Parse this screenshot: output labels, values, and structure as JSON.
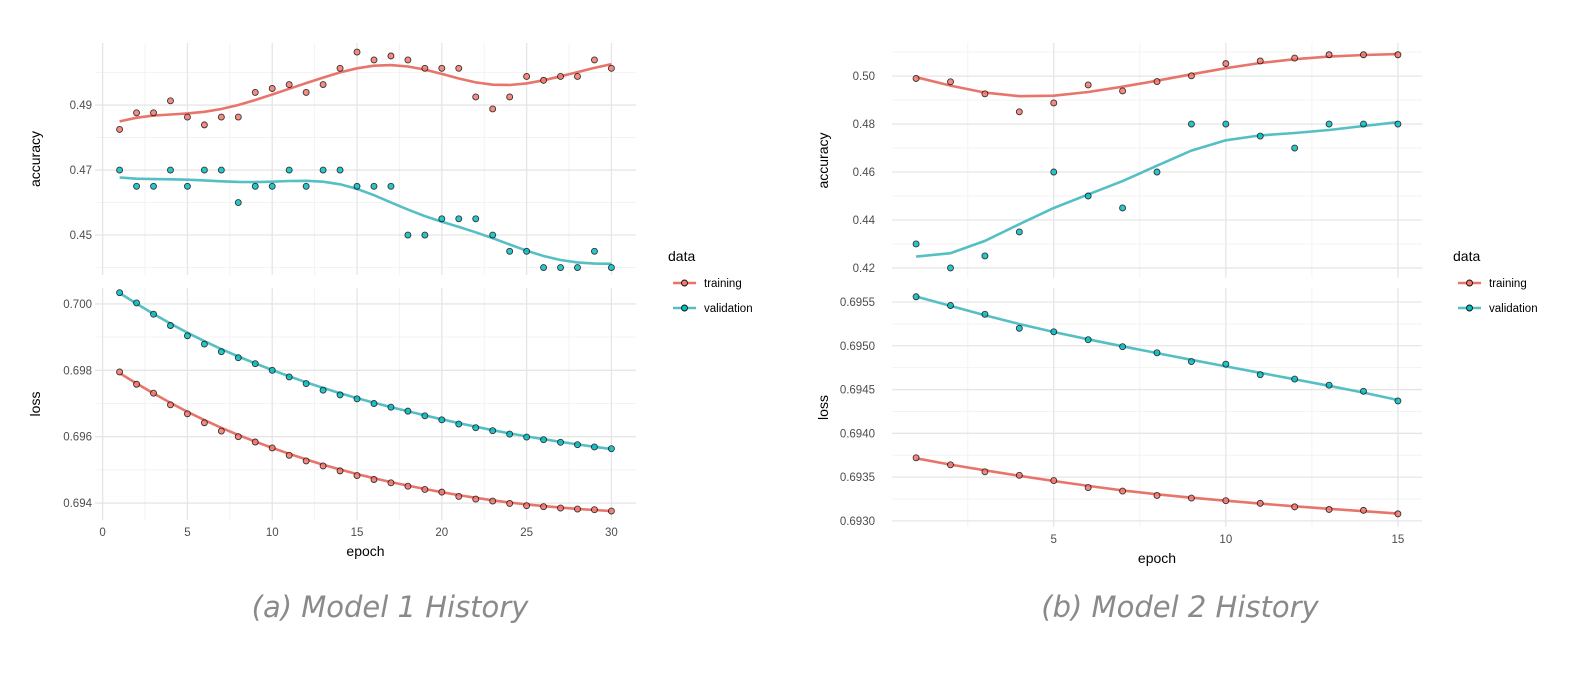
{
  "colors": {
    "training": "#F8766D",
    "validation": "#00BFC4",
    "training_line": "#E8756B",
    "validation_line": "#55BFC4"
  },
  "legend": {
    "title": "data",
    "entries": [
      "training",
      "validation"
    ],
    "placement": "right"
  },
  "captions": [
    "(a) Model 1 History",
    "(b) Model 2 History"
  ],
  "chart_data": [
    {
      "type": "scatter",
      "title": "",
      "xlabel": "epoch",
      "xlim": [
        -0.45,
        31.45
      ],
      "xticks": [
        0,
        5,
        10,
        15,
        20,
        25,
        30
      ],
      "grid": true,
      "smooth": "loess",
      "panels": [
        {
          "ylabel": "accuracy",
          "ylim": [
            0.4377,
            0.5091
          ],
          "yticks": [
            "0.45",
            "0.47",
            "0.49"
          ],
          "series": [
            {
              "name": "training",
              "values": [
                0.4825,
                0.4876,
                0.4876,
                0.4913,
                0.4863,
                0.4839,
                0.4863,
                0.4863,
                0.4939,
                0.4951,
                0.4963,
                0.4939,
                0.4963,
                0.5013,
                0.5063,
                0.5039,
                0.5051,
                0.5039,
                0.5013,
                0.5013,
                0.5013,
                0.4925,
                0.4888,
                0.4925,
                0.4988,
                0.4976,
                0.4988,
                0.4988,
                0.5039,
                0.5013
              ]
            },
            {
              "name": "validation",
              "values": [
                0.47,
                0.465,
                0.465,
                0.47,
                0.465,
                0.47,
                0.47,
                0.46,
                0.465,
                0.465,
                0.47,
                0.465,
                0.47,
                0.47,
                0.465,
                0.465,
                0.465,
                0.45,
                0.45,
                0.455,
                0.455,
                0.455,
                0.45,
                0.445,
                0.445,
                0.44,
                0.44,
                0.44,
                0.445,
                0.44
              ]
            }
          ]
        },
        {
          "ylabel": "loss",
          "ylim": [
            0.69349,
            0.70048
          ],
          "yticks": [
            "0.694",
            "0.696",
            "0.698",
            "0.700"
          ],
          "series": [
            {
              "name": "training",
              "values": [
                0.69795,
                0.69758,
                0.69731,
                0.69696,
                0.69669,
                0.69642,
                0.69617,
                0.696,
                0.69584,
                0.69566,
                0.69544,
                0.69527,
                0.69512,
                0.69497,
                0.69483,
                0.69471,
                0.69461,
                0.69451,
                0.69441,
                0.69433,
                0.6942,
                0.69412,
                0.69406,
                0.69399,
                0.69392,
                0.69389,
                0.69385,
                0.69382,
                0.6938,
                0.69376
              ]
            },
            {
              "name": "validation",
              "values": [
                0.70034,
                0.70003,
                0.69969,
                0.69935,
                0.69904,
                0.69879,
                0.69856,
                0.69838,
                0.6982,
                0.698,
                0.6978,
                0.6976,
                0.6974,
                0.69726,
                0.69714,
                0.697,
                0.69689,
                0.69677,
                0.69663,
                0.69651,
                0.69638,
                0.69627,
                0.69618,
                0.69608,
                0.69599,
                0.69591,
                0.69583,
                0.69576,
                0.69569,
                0.69564
              ]
            }
          ]
        }
      ]
    },
    {
      "type": "scatter",
      "title": "",
      "xlabel": "epoch",
      "xlim": [
        0.3,
        15.7
      ],
      "xticks": [
        5,
        10,
        15
      ],
      "grid": true,
      "smooth": "loess",
      "panels": [
        {
          "ylabel": "accuracy",
          "ylim": [
            0.4158,
            0.5138
          ],
          "yticks": [
            "0.42",
            "0.44",
            "0.46",
            "0.48",
            "0.50"
          ],
          "series": [
            {
              "name": "training",
              "values": [
                0.499,
                0.4976,
                0.4926,
                0.4851,
                0.4888,
                0.4963,
                0.4938,
                0.4977,
                0.5001,
                0.5052,
                0.5063,
                0.5075,
                0.5089,
                0.5089,
                0.5089
              ]
            },
            {
              "name": "validation",
              "values": [
                0.43,
                0.42,
                0.425,
                0.435,
                0.46,
                0.45,
                0.445,
                0.46,
                0.48,
                0.48,
                0.475,
                0.47,
                0.48,
                0.48,
                0.48
              ]
            }
          ]
        },
        {
          "ylabel": "loss",
          "ylim": [
            0.69293,
            0.69566
          ],
          "yticks": [
            "0.6930",
            "0.6935",
            "0.6940",
            "0.6945",
            "0.6950",
            "0.6955"
          ],
          "series": [
            {
              "name": "training",
              "values": [
                0.69372,
                0.69364,
                0.69356,
                0.69352,
                0.69346,
                0.69338,
                0.69334,
                0.69329,
                0.69326,
                0.69323,
                0.6932,
                0.69316,
                0.69313,
                0.69312,
                0.69308
              ]
            },
            {
              "name": "validation",
              "values": [
                0.69556,
                0.69546,
                0.69536,
                0.6952,
                0.69516,
                0.69507,
                0.69499,
                0.69492,
                0.69482,
                0.69479,
                0.69467,
                0.69462,
                0.69455,
                0.69448,
                0.69437
              ]
            }
          ]
        }
      ]
    }
  ]
}
